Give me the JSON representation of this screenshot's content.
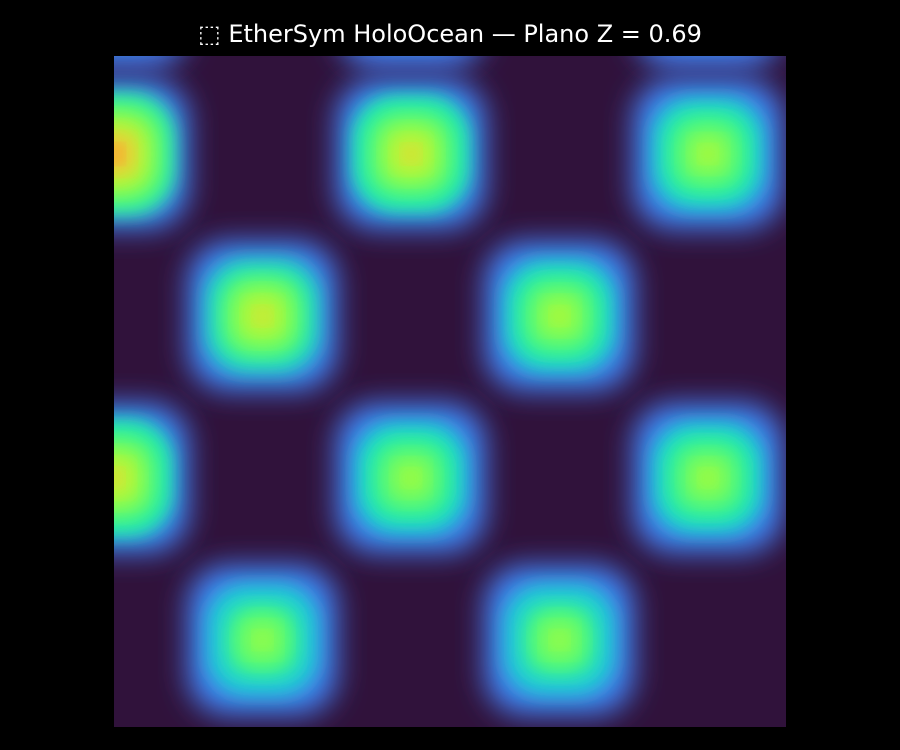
{
  "title": "⬚ EtherSym HoloOcean — Plano Z = 0.69",
  "chart_data": {
    "type": "heatmap",
    "title": "⬚ EtherSym HoloOcean — Plano Z = 0.69",
    "z_plane": 0.69,
    "colormap": "turbo",
    "background_color": "#000000",
    "floor_color": "#30123b",
    "grid": false,
    "axes_visible": false,
    "colorbar": false,
    "columns": 5,
    "rows": 5,
    "values": [
      [
        0.3,
        0.0,
        0.28,
        0.0,
        0.25
      ],
      [
        0.9,
        0.0,
        0.75,
        0.0,
        0.62
      ],
      [
        0.0,
        0.72,
        0.0,
        0.63,
        0.0
      ],
      [
        0.75,
        0.0,
        0.6,
        0.0,
        0.6
      ],
      [
        0.0,
        0.58,
        0.0,
        0.58,
        0.0
      ]
    ]
  }
}
